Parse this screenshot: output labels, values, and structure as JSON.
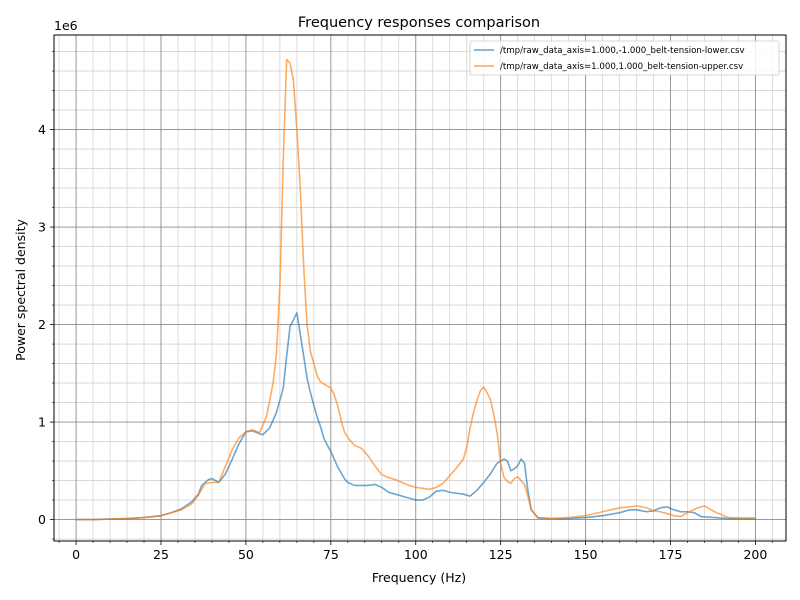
{
  "chart_data": {
    "type": "line",
    "title": "Frequency responses comparison",
    "xlabel": "Frequency (Hz)",
    "ylabel": "Power spectral density",
    "y_multiplier_label": "1e6",
    "xlim": [
      -6.5,
      209
    ],
    "ylim": [
      -0.22,
      4.97
    ],
    "x_ticks": [
      0,
      25,
      50,
      75,
      100,
      125,
      150,
      175,
      200
    ],
    "y_ticks": [
      0,
      1,
      2,
      3,
      4
    ],
    "x_tick_labels": [
      "0",
      "25",
      "50",
      "75",
      "100",
      "125",
      "150",
      "175",
      "200"
    ],
    "y_tick_labels": [
      "0",
      "1",
      "2",
      "3",
      "4"
    ],
    "grid": true,
    "legend_position": "top-right",
    "series": [
      {
        "name": "/tmp/raw_data_axis=1.000,-1.000_belt-tension-lower.csv",
        "color": "#1f77b4",
        "x": [
          0,
          5,
          10,
          15,
          20,
          25,
          28,
          31,
          34,
          36,
          37,
          39,
          40,
          42,
          44,
          46,
          48,
          50,
          52,
          54,
          55,
          57,
          59,
          61,
          62,
          63,
          64,
          65,
          66,
          67,
          68,
          69,
          70,
          71,
          72,
          73,
          74,
          75,
          76,
          77,
          78,
          79,
          80,
          82,
          84,
          86,
          88,
          90,
          92,
          94,
          96,
          98,
          100,
          102,
          104,
          106,
          108,
          110,
          112,
          114,
          116,
          118,
          120,
          122,
          124,
          126,
          127,
          128,
          129,
          130,
          131,
          132,
          133,
          134,
          136,
          140,
          145,
          150,
          155,
          160,
          163,
          165,
          168,
          170,
          172,
          174,
          176,
          178,
          180,
          182,
          184,
          188,
          192,
          196,
          200
        ],
        "y": [
          0,
          0,
          0.005,
          0.01,
          0.02,
          0.04,
          0.07,
          0.11,
          0.18,
          0.26,
          0.35,
          0.41,
          0.42,
          0.38,
          0.47,
          0.62,
          0.78,
          0.9,
          0.91,
          0.88,
          0.87,
          0.94,
          1.1,
          1.35,
          1.68,
          1.98,
          2.05,
          2.12,
          1.9,
          1.68,
          1.45,
          1.3,
          1.17,
          1.05,
          0.95,
          0.83,
          0.76,
          0.7,
          0.62,
          0.54,
          0.48,
          0.42,
          0.38,
          0.35,
          0.35,
          0.35,
          0.36,
          0.33,
          0.28,
          0.26,
          0.24,
          0.22,
          0.2,
          0.2,
          0.23,
          0.29,
          0.3,
          0.28,
          0.27,
          0.26,
          0.24,
          0.3,
          0.38,
          0.47,
          0.58,
          0.62,
          0.6,
          0.5,
          0.52,
          0.55,
          0.62,
          0.58,
          0.3,
          0.1,
          0.015,
          0.01,
          0.01,
          0.02,
          0.04,
          0.07,
          0.1,
          0.1,
          0.08,
          0.09,
          0.12,
          0.13,
          0.1,
          0.08,
          0.08,
          0.07,
          0.03,
          0.02,
          0.01,
          0.01,
          0.01
        ]
      },
      {
        "name": "/tmp/raw_data_axis=1.000,1.000_belt-tension-upper.csv",
        "color": "#ff7f0e",
        "x": [
          0,
          5,
          10,
          15,
          20,
          25,
          28,
          31,
          34,
          36,
          38,
          40,
          42,
          44,
          46,
          48,
          50,
          52,
          54,
          56,
          57,
          58,
          59,
          60,
          61,
          62,
          63,
          64,
          65,
          66,
          67,
          68,
          69,
          70,
          71,
          72,
          73,
          75,
          76,
          77,
          78,
          79,
          80,
          82,
          84,
          86,
          88,
          90,
          92,
          94,
          96,
          98,
          100,
          102,
          104,
          106,
          108,
          110,
          112,
          114,
          115,
          116,
          117,
          118,
          119,
          120,
          121,
          122,
          123,
          124,
          125,
          126,
          127,
          128,
          129,
          130,
          131,
          132,
          133,
          134,
          136,
          140,
          145,
          150,
          155,
          160,
          163,
          165,
          168,
          170,
          172,
          174,
          176,
          178,
          180,
          183,
          185,
          188,
          192,
          196,
          200
        ],
        "y": [
          0,
          0,
          0.005,
          0.01,
          0.02,
          0.04,
          0.07,
          0.1,
          0.16,
          0.25,
          0.37,
          0.38,
          0.38,
          0.55,
          0.72,
          0.84,
          0.9,
          0.92,
          0.89,
          1.05,
          1.22,
          1.4,
          1.7,
          2.4,
          3.7,
          4.72,
          4.68,
          4.5,
          4.0,
          3.4,
          2.6,
          2.0,
          1.72,
          1.6,
          1.47,
          1.41,
          1.39,
          1.35,
          1.28,
          1.17,
          1.02,
          0.9,
          0.84,
          0.76,
          0.73,
          0.65,
          0.55,
          0.46,
          0.43,
          0.41,
          0.38,
          0.35,
          0.33,
          0.32,
          0.31,
          0.33,
          0.37,
          0.45,
          0.53,
          0.62,
          0.74,
          0.94,
          1.1,
          1.22,
          1.32,
          1.36,
          1.3,
          1.23,
          1.07,
          0.88,
          0.57,
          0.43,
          0.39,
          0.37,
          0.42,
          0.44,
          0.4,
          0.36,
          0.24,
          0.1,
          0.02,
          0.01,
          0.02,
          0.04,
          0.08,
          0.12,
          0.13,
          0.14,
          0.12,
          0.09,
          0.08,
          0.06,
          0.04,
          0.03,
          0.07,
          0.12,
          0.14,
          0.08,
          0.02,
          0.015,
          0.015
        ]
      }
    ]
  }
}
